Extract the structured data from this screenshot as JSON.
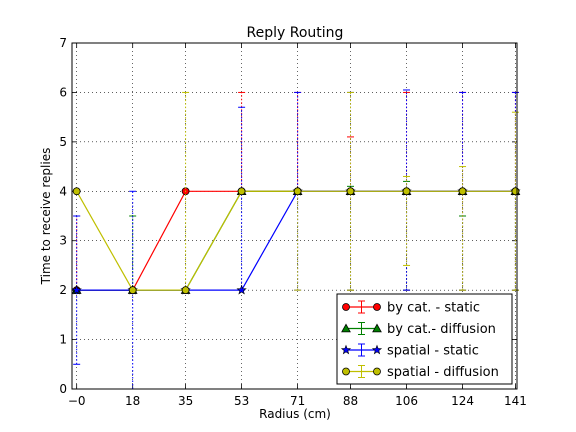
{
  "chart_data": {
    "type": "line",
    "title": "Reply Routing",
    "xlabel": "Radius (cm)",
    "ylabel": "Time to receive replies",
    "xlim": [
      -1.5,
      141.5
    ],
    "ylim": [
      0,
      7
    ],
    "x": [
      0,
      18,
      35,
      53,
      71,
      88,
      106,
      124,
      141
    ],
    "xtick_labels": [
      "−0",
      "18",
      "35",
      "53",
      "71",
      "88",
      "106",
      "124",
      "141"
    ],
    "yticks": [
      0,
      1,
      2,
      3,
      4,
      5,
      6,
      7
    ],
    "grid": true,
    "legend_position": "lower-right",
    "series": [
      {
        "name": "by cat. - static",
        "color": "#ff0000",
        "marker": "circle",
        "values": [
          2,
          2,
          4,
          4,
          4,
          4,
          4,
          4,
          4
        ],
        "err_low": [
          2,
          2,
          4,
          4,
          4,
          2,
          2,
          2,
          2
        ],
        "err_high": [
          3.5,
          2,
          4,
          6,
          6,
          5.1,
          6,
          6,
          6
        ]
      },
      {
        "name": "by cat.- diffusion",
        "color": "#008000",
        "marker": "triangle",
        "values": [
          2,
          2,
          2,
          4,
          4,
          4,
          4,
          4,
          4
        ],
        "err_low": [
          2,
          2,
          2,
          4,
          4,
          2,
          2,
          2,
          2
        ],
        "err_high": [
          2,
          3.5,
          2,
          4,
          4,
          4.1,
          4.2,
          3.5,
          4
        ]
      },
      {
        "name": "spatial - static",
        "color": "#0000ff",
        "marker": "star",
        "values": [
          2,
          2,
          2,
          2,
          4,
          4,
          4,
          4,
          4
        ],
        "err_low": [
          0.5,
          0,
          2,
          2,
          2,
          2,
          2,
          2,
          2
        ],
        "err_high": [
          3.5,
          4,
          2,
          5.7,
          6,
          6,
          6.05,
          6,
          6
        ]
      },
      {
        "name": "spatial - diffusion",
        "color": "#bfbf00",
        "marker": "circle",
        "values": [
          4,
          2,
          2,
          4,
          4,
          4,
          4,
          4,
          4
        ],
        "err_low": [
          4,
          2,
          2,
          4,
          2,
          2,
          2.5,
          2,
          2
        ],
        "err_high": [
          4,
          2,
          6,
          4,
          4,
          6,
          4.3,
          4.5,
          5.6
        ]
      }
    ]
  }
}
